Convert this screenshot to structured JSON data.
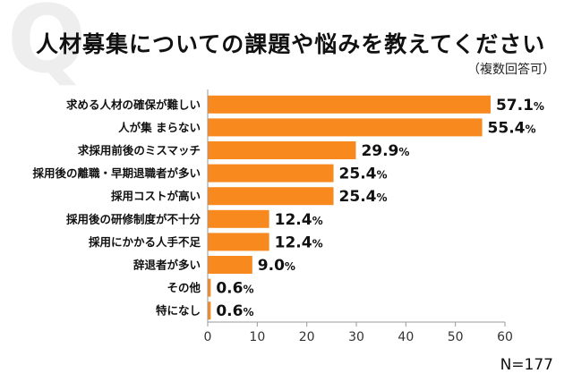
{
  "header": {
    "watermark": "Q",
    "title": "人材募集についての課題や悩みを教えてください",
    "subtitle": "（複数回答可）"
  },
  "footer": {
    "n_label": "N=177"
  },
  "colors": {
    "bar": "#F7891F",
    "axis": "#999999",
    "text": "#111111"
  },
  "chart_data": {
    "type": "bar",
    "orientation": "horizontal",
    "title": "人材募集についての課題や悩みを教えてください",
    "subtitle": "（複数回答可）",
    "categories": [
      "求める人材の確保が難しい",
      "人が集 まらない",
      "求採用前後のミスマッチ",
      "採用後の離職・早期退職者が多い",
      "採用コストが高い",
      "採用後の研修制度が不十分",
      "採用にかかる人手不足",
      "辞退者が多い",
      "その他",
      "特になし"
    ],
    "values": [
      57.1,
      55.4,
      29.9,
      25.4,
      25.4,
      12.4,
      12.4,
      9.0,
      0.6,
      0.6
    ],
    "value_labels": [
      "57.1",
      "55.4",
      "29.9",
      "25.4",
      "25.4",
      "12.4",
      "12.4",
      "9.0",
      "0.6",
      "0.6"
    ],
    "unit": "%",
    "xlim": [
      0,
      60
    ],
    "xticks": [
      0,
      10,
      20,
      30,
      40,
      50,
      60
    ],
    "grid": false,
    "legend": "none",
    "note": "N=177"
  }
}
